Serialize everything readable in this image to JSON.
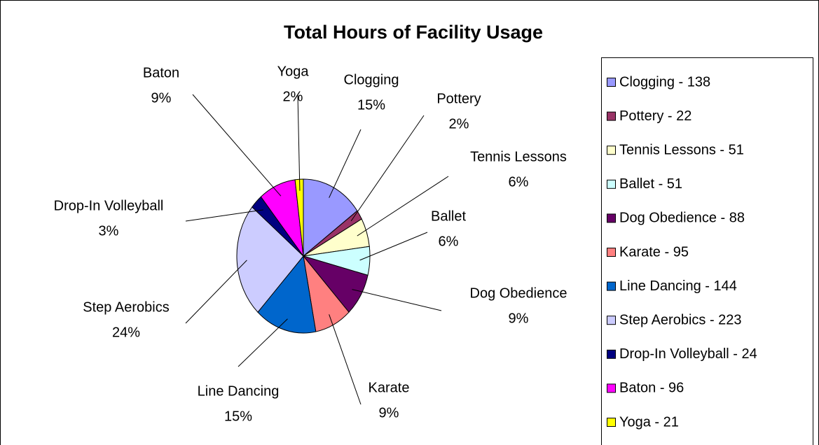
{
  "chart_data": {
    "type": "pie",
    "title": "Total Hours of Facility Usage",
    "categories": [
      "Clogging",
      "Pottery",
      "Tennis Lessons",
      "Ballet",
      "Dog Obedience",
      "Karate",
      "Line Dancing",
      "Step Aerobics",
      "Drop-In Volleyball",
      "Baton",
      "Yoga"
    ],
    "values": [
      15,
      2,
      6,
      6,
      9,
      9,
      15,
      24,
      3,
      9,
      2
    ],
    "value_labels": [
      "15%",
      "2%",
      "6%",
      "6%",
      "9%",
      "9%",
      "15%",
      "24%",
      "3%",
      "9%",
      "2%"
    ],
    "legend_labels": [
      "Clogging - 138",
      "Pottery - 22",
      "Tennis Lessons - 51",
      "Ballet - 51",
      "Dog Obedience - 88",
      "Karate - 95",
      "Line Dancing - 144",
      "Step Aerobics - 223",
      "Drop-In Volleyball - 24",
      "Baton - 96",
      "Yoga - 21"
    ],
    "colors": [
      "#9999ff",
      "#993366",
      "#ffffcc",
      "#ccffff",
      "#660066",
      "#ff8080",
      "#0066cc",
      "#ccccff",
      "#000080",
      "#ff00ff",
      "#ffff00"
    ],
    "legend": "right"
  }
}
